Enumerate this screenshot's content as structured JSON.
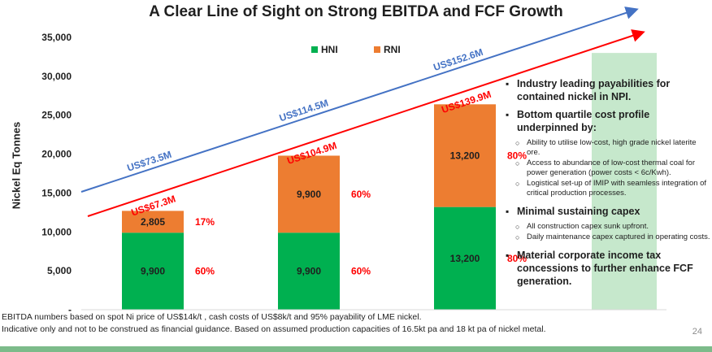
{
  "title": "A Clear Line of Sight on Strong EBITDA and FCF Growth",
  "chart_data": {
    "type": "bar",
    "stacked": true,
    "ylabel": "Nickel Eq Tonnes",
    "ylim": [
      0,
      35000
    ],
    "yticks": [
      "35,000",
      "30,000",
      "25,000",
      "20,000",
      "15,000",
      "10,000",
      "5,000",
      "-"
    ],
    "legend": {
      "position": "top-center",
      "entries": [
        "HNI",
        "RNI"
      ]
    },
    "series": [
      {
        "name": "HNI",
        "color": "#00b050",
        "values": [
          9900,
          9900,
          13200
        ],
        "labels": [
          "9,900",
          "9,900",
          "13,200"
        ],
        "pct": [
          "60%",
          "60%",
          "80%"
        ]
      },
      {
        "name": "RNI",
        "color": "#ed7d31",
        "values": [
          2805,
          9900,
          13200
        ],
        "labels": [
          "2,805",
          "9,900",
          "13,200"
        ],
        "pct": [
          "17%",
          "60%",
          "80%"
        ]
      }
    ],
    "ghost_bar": {
      "color": "#c6e8cc",
      "value": 33000
    },
    "trend_lines": [
      {
        "name": "FCF",
        "color": "#4472c4",
        "labels": [
          "US$73.5M",
          "US$114.5M",
          "US$152.6M"
        ]
      },
      {
        "name": "EBITDA",
        "color": "#ff0000",
        "labels": [
          "US$67.3M",
          "US$104.9M",
          "US$139.9M"
        ]
      }
    ]
  },
  "bullets": [
    {
      "text": "Industry leading payabilities for contained nickel in NPI.",
      "subs": []
    },
    {
      "text": "Bottom quartile cost profile underpinned by:",
      "subs": [
        "Ability to utilise low-cost, high grade nickel laterite ore.",
        "Access to abundance of low-cost thermal coal for power generation (power costs < 6c/Kwh).",
        "Logistical set-up of IMIP with seamless integration of critical production processes."
      ]
    },
    {
      "text": "Minimal sustaining capex",
      "subs": [
        "All construction capex sunk upfront.",
        "Daily maintenance capex captured in operating costs."
      ]
    },
    {
      "text": "Material corporate income tax concessions to further enhance FCF generation.",
      "subs": []
    }
  ],
  "footnotes": [
    "EBITDA numbers based on spot Ni price of US$14k/t , cash costs of US$8k/t and 95% payability of LME nickel.",
    "Indicative only and not to be construed as financial guidance. Based on assumed production capacities of 16.5kt pa and 18 kt pa of nickel metal."
  ],
  "page_number": "24"
}
